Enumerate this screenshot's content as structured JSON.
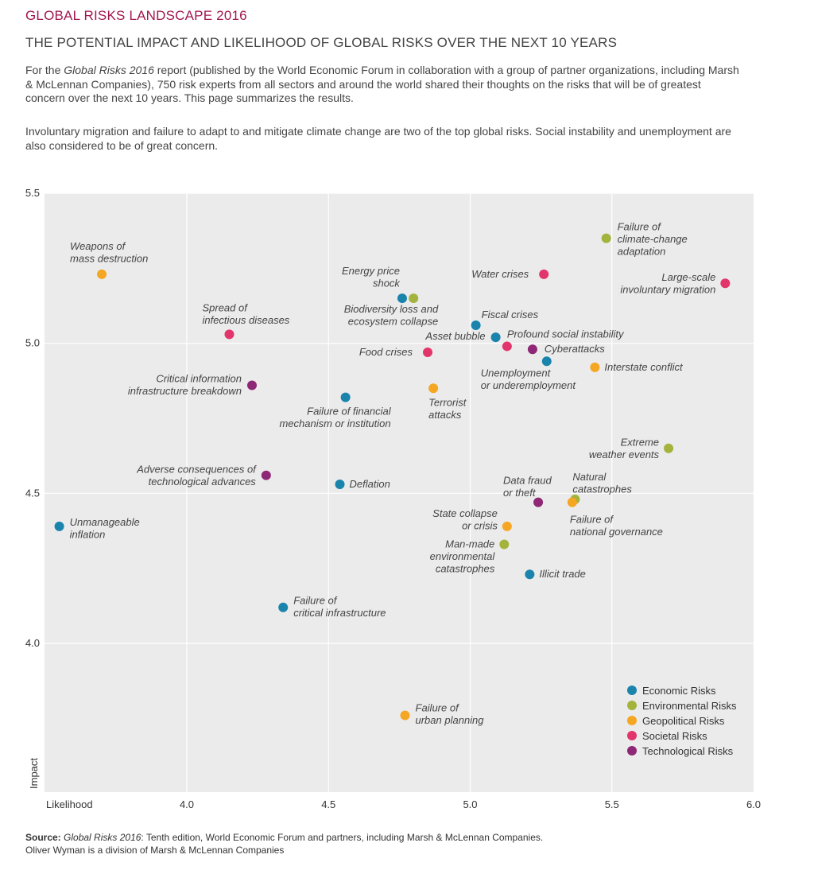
{
  "header": {
    "title": "GLOBAL RISKS LANDSCAPE 2016",
    "subtitle": "THE POTENTIAL IMPACT AND LIKELIHOOD OF GLOBAL RISKS OVER THE NEXT 10 YEARS",
    "intro_lead": "For the ",
    "intro_report": "Global Risks 2016",
    "intro_rest": " report (published by the World Economic Forum in collaboration with a group of partner organizations, including Marsh & McLennan Companies), 750 risk experts from all sectors and around the world shared their thoughts on the risks that will be of greatest concern over the next 10 years. This page summarizes the results.",
    "intro2": "Involuntary migration and failure to adapt to and mitigate climate change are two of the top global risks. Social instability and unemployment are also considered to be of great concern."
  },
  "footer": {
    "source_label": "Source:",
    "source_report": "Global Risks 2016",
    "source_rest": ": Tenth edition, World Economic Forum and partners, including Marsh & McLennan Companies.",
    "line2": "Oliver Wyman is a division of Marsh & McLennan Companies"
  },
  "colors": {
    "Economic Risks": "#1a84ad",
    "Environmental Risks": "#a3b33b",
    "Geopolitical Risks": "#f5a623",
    "Societal Risks": "#e2356b",
    "Technological Risks": "#8e2775",
    "plot_bg": "#ebebeb",
    "grid": "#ffffff"
  },
  "chart_data": {
    "type": "scatter",
    "title": "GLOBAL RISKS LANDSCAPE 2016",
    "xlabel": "Likelihood",
    "ylabel": "Impact",
    "xlim": [
      3.5,
      6.0
    ],
    "ylim": [
      3.5,
      5.5
    ],
    "xticks": [
      4.0,
      4.5,
      5.0,
      5.5,
      6.0
    ],
    "yticks": [
      4.0,
      4.5,
      5.0,
      5.5
    ],
    "grid": true,
    "legend_position": "bottom-right",
    "series": [
      {
        "name": "Economic Risks",
        "points": [
          {
            "label": "Energy price shock",
            "x": 4.76,
            "y": 5.15
          },
          {
            "label": "Fiscal crises",
            "x": 5.02,
            "y": 5.06
          },
          {
            "label": "Asset bubble",
            "x": 5.09,
            "y": 5.02
          },
          {
            "label": "Unemployment or underemployment",
            "x": 5.27,
            "y": 4.94
          },
          {
            "label": "Failure of financial mechanism or institution",
            "x": 4.56,
            "y": 4.82
          },
          {
            "label": "Deflation",
            "x": 4.54,
            "y": 4.53
          },
          {
            "label": "Unmanageable inflation",
            "x": 3.55,
            "y": 4.39
          },
          {
            "label": "Illicit trade",
            "x": 5.21,
            "y": 4.23
          },
          {
            "label": "Failure of critical infrastructure",
            "x": 4.34,
            "y": 4.12
          }
        ]
      },
      {
        "name": "Environmental Risks",
        "points": [
          {
            "label": "Failure of climate-change adaptation",
            "x": 5.48,
            "y": 5.35
          },
          {
            "label": "Biodiversity loss and ecosystem collapse",
            "x": 4.8,
            "y": 5.15
          },
          {
            "label": "Extreme weather events",
            "x": 5.7,
            "y": 4.65
          },
          {
            "label": "Natural catastrophes",
            "x": 5.37,
            "y": 4.48
          },
          {
            "label": "Man-made environmental catastrophes",
            "x": 5.12,
            "y": 4.33
          }
        ]
      },
      {
        "name": "Geopolitical Risks",
        "points": [
          {
            "label": "Weapons of mass destruction",
            "x": 3.7,
            "y": 5.23
          },
          {
            "label": "Interstate conflict",
            "x": 5.44,
            "y": 4.92
          },
          {
            "label": "Terrorist attacks",
            "x": 4.87,
            "y": 4.85
          },
          {
            "label": "Failure of national governance",
            "x": 5.36,
            "y": 4.47
          },
          {
            "label": "State collapse or crisis",
            "x": 5.13,
            "y": 4.39
          },
          {
            "label": "Failure of urban planning",
            "x": 4.77,
            "y": 3.76
          }
        ]
      },
      {
        "name": "Societal Risks",
        "points": [
          {
            "label": "Water crises",
            "x": 5.26,
            "y": 5.23
          },
          {
            "label": "Large-scale involuntary migration",
            "x": 5.9,
            "y": 5.2
          },
          {
            "label": "Spread of infectious diseases",
            "x": 4.15,
            "y": 5.03
          },
          {
            "label": "Profound social instability",
            "x": 5.13,
            "y": 4.99
          },
          {
            "label": "Food crises",
            "x": 4.85,
            "y": 4.97
          }
        ]
      },
      {
        "name": "Technological Risks",
        "points": [
          {
            "label": "Cyberattacks",
            "x": 5.22,
            "y": 4.98
          },
          {
            "label": "Critical information infrastructure breakdown",
            "x": 4.23,
            "y": 4.86
          },
          {
            "label": "Adverse consequences of technological advances",
            "x": 4.28,
            "y": 4.56
          },
          {
            "label": "Data fraud or theft",
            "x": 5.24,
            "y": 4.47
          }
        ]
      }
    ],
    "point_labels": {
      "Energy price shock": [
        "Energy price",
        "shock"
      ],
      "Fiscal crises": [
        "Fiscal crises"
      ],
      "Asset bubble": [
        "Asset bubble"
      ],
      "Unemployment or underemployment": [
        "Unemployment",
        "or underemployment"
      ],
      "Failure of financial mechanism or institution": [
        "Failure of financial",
        "mechanism or institution"
      ],
      "Deflation": [
        "Deflation"
      ],
      "Unmanageable inflation": [
        "Unmanageable",
        "inflation"
      ],
      "Illicit trade": [
        "Illicit trade"
      ],
      "Failure of critical infrastructure": [
        "Failure of",
        "critical infrastructure"
      ],
      "Failure of climate-change adaptation": [
        "Failure of",
        "climate-change",
        "adaptation"
      ],
      "Biodiversity loss and ecosystem collapse": [
        "Biodiversity loss and",
        "ecosystem collapse"
      ],
      "Extreme weather events": [
        "Extreme",
        "weather events"
      ],
      "Natural catastrophes": [
        "Natural",
        "catastrophes"
      ],
      "Man-made environmental catastrophes": [
        "Man-made",
        "environmental",
        "catastrophes"
      ],
      "Weapons of mass destruction": [
        "Weapons of",
        "mass destruction"
      ],
      "Interstate conflict": [
        "Interstate conflict"
      ],
      "Terrorist attacks": [
        "Terrorist",
        "attacks"
      ],
      "Failure of national governance": [
        "Failure of",
        "national governance"
      ],
      "State collapse or crisis": [
        "State collapse",
        "or crisis"
      ],
      "Failure of urban planning": [
        "Failure of",
        "urban planning"
      ],
      "Water crises": [
        "Water crises"
      ],
      "Large-scale involuntary migration": [
        "Large-scale",
        "involuntary migration"
      ],
      "Spread of infectious diseases": [
        "Spread of",
        "infectious diseases"
      ],
      "Profound social instability": [
        "Profound social instability"
      ],
      "Food crises": [
        "Food crises"
      ],
      "Cyberattacks": [
        "Cyberattacks"
      ],
      "Critical information infrastructure breakdown": [
        "Critical information",
        "infrastructure breakdown"
      ],
      "Adverse consequences of technological advances": [
        "Adverse consequences of",
        "technological advances"
      ],
      "Data fraud or theft": [
        "Data fraud",
        "or theft"
      ]
    }
  }
}
